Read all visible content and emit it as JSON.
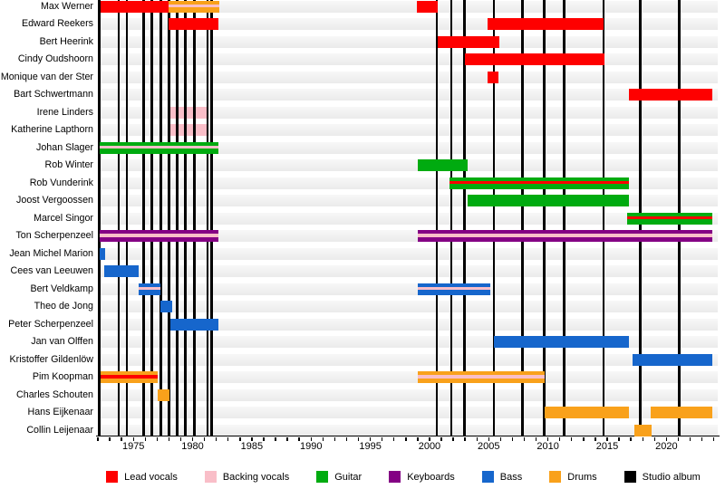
{
  "chart_data": {
    "type": "bar",
    "subtype": "gantt-band-membership-timeline",
    "x_range": [
      1972,
      2024.3
    ],
    "grid": "horizontal-row-bands",
    "legend_position": "bottom",
    "x_ticks": [
      {
        "year": 1975,
        "label": "1975"
      },
      {
        "year": 1980,
        "label": "1980"
      },
      {
        "year": 1985,
        "label": "1985"
      },
      {
        "year": 1990,
        "label": "1990"
      },
      {
        "year": 1995,
        "label": "1995"
      },
      {
        "year": 2000,
        "label": "2000"
      },
      {
        "year": 2005,
        "label": "2005"
      },
      {
        "year": 2010,
        "label": "2010"
      },
      {
        "year": 2015,
        "label": "2015"
      },
      {
        "year": 2020,
        "label": "2020"
      }
    ],
    "role_colors": {
      "lead_vocals": "#fe0000",
      "backing_vocals": "#f9bec8",
      "guitar": "#00ab10",
      "keyboards": "#840084",
      "bass": "#1666cc",
      "drums": "#f9a11b",
      "studio_album": "#000000"
    },
    "legend": [
      {
        "role": "lead_vocals",
        "label": "Lead vocals"
      },
      {
        "role": "backing_vocals",
        "label": "Backing vocals"
      },
      {
        "role": "guitar",
        "label": "Guitar"
      },
      {
        "role": "keyboards",
        "label": "Keyboards"
      },
      {
        "role": "bass",
        "label": "Bass"
      },
      {
        "role": "drums",
        "label": "Drums"
      },
      {
        "role": "studio_album",
        "label": "Studio album"
      }
    ],
    "album_lines": [
      1972.1,
      1973.75,
      1974.45,
      1975.85,
      1976.55,
      1977.3,
      1978.0,
      1978.7,
      1979.4,
      1980.15,
      1981.25,
      1981.6,
      2000.6,
      2001.85,
      2002.95,
      2005.45,
      2007.85,
      2009.7,
      2011.35,
      2014.7,
      2017.8,
      2021.1
    ],
    "members": [
      {
        "name": "Max Werner",
        "segments": [
          {
            "role": "lead_vocals",
            "from": 1972.2,
            "till": 1978.0
          },
          {
            "role": "drums",
            "from": 1978.0,
            "till": 1982.25,
            "stripe": "backing_vocals"
          },
          {
            "role": "lead_vocals",
            "from": 1998.95,
            "till": 2000.7
          }
        ]
      },
      {
        "name": "Edward Reekers",
        "segments": [
          {
            "role": "lead_vocals",
            "from": 1978.0,
            "till": 1982.2
          },
          {
            "role": "lead_vocals",
            "from": 2004.9,
            "till": 2014.7
          }
        ]
      },
      {
        "name": "Bert Heerink",
        "segments": [
          {
            "role": "lead_vocals",
            "from": 2000.7,
            "till": 2005.9
          }
        ]
      },
      {
        "name": "Cindy Oudshoorn",
        "segments": [
          {
            "role": "lead_vocals",
            "from": 2002.95,
            "till": 2014.75
          }
        ]
      },
      {
        "name": "Monique van der Ster",
        "segments": [
          {
            "role": "lead_vocals",
            "from": 2004.9,
            "till": 2005.8
          }
        ]
      },
      {
        "name": "Bart Schwertmann",
        "segments": [
          {
            "role": "lead_vocals",
            "from": 2016.8,
            "till": 2023.9
          }
        ]
      },
      {
        "name": "Irene Linders",
        "segments": [
          {
            "role": "backing_vocals",
            "from": 1978.1,
            "till": 1981.15
          }
        ]
      },
      {
        "name": "Katherine Lapthorn",
        "segments": [
          {
            "role": "backing_vocals",
            "from": 1978.1,
            "till": 1981.15
          }
        ]
      },
      {
        "name": "Johan Slager",
        "segments": [
          {
            "role": "guitar",
            "from": 1972.15,
            "till": 1982.2,
            "stripe": "backing_vocals"
          }
        ]
      },
      {
        "name": "Rob Winter",
        "segments": [
          {
            "role": "guitar",
            "from": 1999.0,
            "till": 2003.2
          }
        ]
      },
      {
        "name": "Rob Vunderink",
        "segments": [
          {
            "role": "guitar",
            "from": 2001.7,
            "till": 2016.8,
            "stripe": "lead_vocals"
          }
        ]
      },
      {
        "name": "Joost Vergoossen",
        "segments": [
          {
            "role": "guitar",
            "from": 2003.2,
            "till": 2016.8
          }
        ]
      },
      {
        "name": "Marcel Singor",
        "segments": [
          {
            "role": "guitar",
            "from": 2016.7,
            "till": 2023.9,
            "stripe": "lead_vocals"
          }
        ]
      },
      {
        "name": "Ton Scherpenzeel",
        "segments": [
          {
            "role": "keyboards",
            "from": 1972.15,
            "till": 1982.2,
            "stripe": "backing_vocals"
          },
          {
            "role": "keyboards",
            "from": 1999.0,
            "till": 2023.9,
            "stripe": "backing_vocals"
          }
        ]
      },
      {
        "name": "Jean Michel Marion",
        "segments": [
          {
            "role": "bass",
            "from": 1972.15,
            "till": 1972.65
          }
        ]
      },
      {
        "name": "Cees van Leeuwen",
        "segments": [
          {
            "role": "bass",
            "from": 1972.55,
            "till": 1975.45
          }
        ]
      },
      {
        "name": "Bert Veldkamp",
        "segments": [
          {
            "role": "bass",
            "from": 1975.45,
            "till": 1977.25,
            "stripe": "backing_vocals"
          },
          {
            "role": "bass",
            "from": 1999.0,
            "till": 2005.15,
            "stripe": "backing_vocals"
          }
        ]
      },
      {
        "name": "Theo de Jong",
        "segments": [
          {
            "role": "bass",
            "from": 1977.25,
            "till": 1978.25
          }
        ]
      },
      {
        "name": "Peter Scherpenzeel",
        "segments": [
          {
            "role": "bass",
            "from": 1978.15,
            "till": 1982.15
          }
        ]
      },
      {
        "name": "Jan van Olffen",
        "segments": [
          {
            "role": "bass",
            "from": 2005.45,
            "till": 2016.85
          }
        ]
      },
      {
        "name": "Kristoffer Gildenlöw",
        "segments": [
          {
            "role": "bass",
            "from": 2017.15,
            "till": 2023.9
          }
        ]
      },
      {
        "name": "Pim Koopman",
        "segments": [
          {
            "role": "drums",
            "from": 1972.2,
            "till": 1977.05,
            "stripe": "lead_vocals"
          },
          {
            "role": "drums",
            "from": 1999.0,
            "till": 2009.7,
            "stripe": "backing_vocals"
          }
        ]
      },
      {
        "name": "Charles Schouten",
        "segments": [
          {
            "role": "drums",
            "from": 1977.05,
            "till": 1978.05
          }
        ]
      },
      {
        "name": "Hans Eijkenaar",
        "segments": [
          {
            "role": "drums",
            "from": 2009.7,
            "till": 2016.85
          },
          {
            "role": "drums",
            "from": 2018.65,
            "till": 2023.9
          }
        ]
      },
      {
        "name": "Collin Leijenaar",
        "segments": [
          {
            "role": "drums",
            "from": 2017.3,
            "till": 2018.75
          }
        ]
      }
    ]
  }
}
